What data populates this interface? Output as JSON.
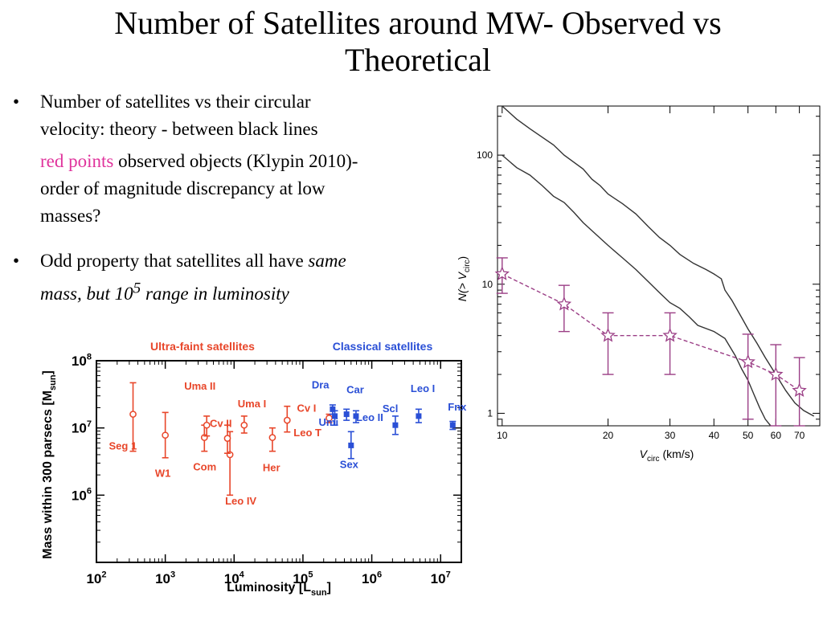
{
  "slide": {
    "title_line1": "Number of Satellites around MW- Observed vs",
    "title_line2": "Theoretical",
    "bullet1_line1": "Number of satellites vs their circular",
    "bullet1_line2": "velocity: theory - between black lines",
    "bullet1b_red": "red points",
    "bullet1b_rest": " observed objects (Klypin 2010)-",
    "bullet1b_line2": "order of magnitude discrepancy at low",
    "bullet1b_line3": "masses?",
    "bullet2_part1": "Odd property that satellites all have ",
    "bullet2_part2": "same",
    "bullet2_line2_part1": "mass, but 10",
    "bullet2_sup": "5",
    "bullet2_line2_part2": " range in luminosity",
    "bullet_glyph": "•"
  },
  "colors": {
    "ultra_faint": "#e8462a",
    "classical": "#2a4fd6",
    "observed": "#9b3f86",
    "theory": "#333333"
  },
  "chart_data": [
    {
      "type": "scatter",
      "title_left": "Ultra-faint satellites",
      "title_right": "Classical satellites",
      "xlabel": "Luminosity [L",
      "xlabel_sub": "sun",
      "xlabel_end": "]",
      "ylabel": "Mass within 300 parsecs [M",
      "ylabel_sub": "sun",
      "ylabel_end": "]",
      "xscale": "log",
      "yscale": "log",
      "xlim": [
        100,
        20000000
      ],
      "ylim": [
        100000,
        100000000
      ],
      "xticks": [
        {
          "v": 100,
          "base": "10",
          "exp": "2"
        },
        {
          "v": 1000,
          "base": "10",
          "exp": "3"
        },
        {
          "v": 10000,
          "base": "10",
          "exp": "4"
        },
        {
          "v": 100000,
          "base": "10",
          "exp": "5"
        },
        {
          "v": 1000000,
          "base": "10",
          "exp": "6"
        },
        {
          "v": 10000000,
          "base": "10",
          "exp": "7"
        }
      ],
      "yticks": [
        {
          "v": 1000000,
          "base": "10",
          "exp": "6"
        },
        {
          "v": 10000000,
          "base": "10",
          "exp": "7"
        },
        {
          "v": 100000000,
          "base": "10",
          "exp": "8"
        }
      ],
      "series": [
        {
          "group": "ultra-faint",
          "points": [
            {
              "name": "Seg 1",
              "x": 340,
              "y": 16000000,
              "lo": 4500000,
              "hi": 47000000
            },
            {
              "name": "W1",
              "x": 1000,
              "y": 7800000,
              "lo": 3600000,
              "hi": 17000000
            },
            {
              "name": "Com",
              "x": 3700,
              "y": 7200000,
              "lo": 4500000,
              "hi": 11000000
            },
            {
              "name": "Uma II",
              "x": 4000,
              "y": 11000000,
              "lo": 7600000,
              "hi": 15000000
            },
            {
              "name": "Leo IV",
              "x": 8700,
              "y": 4000000,
              "lo": 1000000,
              "hi": 8800000
            },
            {
              "name": "Cv II",
              "x": 8000,
              "y": 7000000,
              "lo": 4200000,
              "hi": 11000000
            },
            {
              "name": "Uma I",
              "x": 14000,
              "y": 11000000,
              "lo": 8400000,
              "hi": 15000000
            },
            {
              "name": "Her",
              "x": 36000,
              "y": 7200000,
              "lo": 4500000,
              "hi": 10000000
            },
            {
              "name": "Leo T",
              "x": 59000,
              "y": 13000000,
              "lo": 8700000,
              "hi": 21000000
            },
            {
              "name": "Cv I",
              "x": 240000,
              "y": 14000000,
              "lo": 12000000,
              "hi": 16000000
            }
          ]
        },
        {
          "group": "classical",
          "points": [
            {
              "name": "Dra",
              "x": 270000,
              "y": 19000000,
              "lo": 16000000,
              "hi": 22000000
            },
            {
              "name": "Umi",
              "x": 290000,
              "y": 15000000,
              "lo": 11000000,
              "hi": 18000000
            },
            {
              "name": "Car",
              "x": 430000,
              "y": 16000000,
              "lo": 13000000,
              "hi": 19000000
            },
            {
              "name": "Sex",
              "x": 500000,
              "y": 5500000,
              "lo": 3500000,
              "hi": 8800000
            },
            {
              "name": "Leo II",
              "x": 590000,
              "y": 15000000,
              "lo": 12000000,
              "hi": 18000000
            },
            {
              "name": "Scl",
              "x": 2200000,
              "y": 11000000,
              "lo": 8000000,
              "hi": 15000000
            },
            {
              "name": "Leo I",
              "x": 4800000,
              "y": 15000000,
              "lo": 12000000,
              "hi": 19000000
            },
            {
              "name": "Fnx",
              "x": 15000000,
              "y": 11000000,
              "lo": 9500000,
              "hi": 12500000
            }
          ]
        }
      ]
    },
    {
      "type": "line",
      "xlabel_main": "V",
      "xlabel_sub": "circ",
      "xlabel_unit": " (km/s)",
      "ylabel": "N(> V",
      "ylabel_sub": "circ",
      "ylabel_end": ")",
      "xscale": "log",
      "yscale": "log",
      "xlim": [
        9.7,
        80
      ],
      "ylim": [
        0.8,
        240
      ],
      "xtick_labels": [
        "10",
        "20",
        "30",
        "40",
        "50",
        "60",
        "70"
      ],
      "xtick_values": [
        10,
        20,
        30,
        40,
        50,
        60,
        70
      ],
      "ytick_labels": [
        "1",
        "10",
        "100"
      ],
      "ytick_values": [
        1,
        10,
        100
      ],
      "theory_upper": [
        [
          10,
          240
        ],
        [
          11,
          190
        ],
        [
          12,
          160
        ],
        [
          14,
          120
        ],
        [
          15,
          100
        ],
        [
          17,
          78
        ],
        [
          18,
          65
        ],
        [
          19,
          58
        ],
        [
          20,
          50
        ],
        [
          22,
          42
        ],
        [
          24,
          35
        ],
        [
          26,
          28
        ],
        [
          28,
          23
        ],
        [
          30,
          20
        ],
        [
          32,
          17
        ],
        [
          35,
          14.5
        ],
        [
          38,
          13
        ],
        [
          40,
          12
        ],
        [
          42,
          11
        ],
        [
          43,
          9
        ],
        [
          45,
          7.5
        ],
        [
          48,
          5.5
        ],
        [
          50,
          4.5
        ],
        [
          53,
          3.5
        ],
        [
          56,
          2.7
        ],
        [
          60,
          2.0
        ],
        [
          64,
          1.5
        ],
        [
          68,
          1.2
        ],
        [
          72,
          1.05
        ],
        [
          77,
          0.95
        ]
      ],
      "theory_lower": [
        [
          10,
          100
        ],
        [
          11,
          80
        ],
        [
          12,
          70
        ],
        [
          13,
          58
        ],
        [
          14,
          48
        ],
        [
          15,
          43
        ],
        [
          16,
          36
        ],
        [
          17,
          30
        ],
        [
          18,
          26
        ],
        [
          20,
          20
        ],
        [
          22,
          16
        ],
        [
          24,
          13
        ],
        [
          26,
          10.5
        ],
        [
          28,
          8.6
        ],
        [
          30,
          7.2
        ],
        [
          32,
          6.5
        ],
        [
          34,
          5.6
        ],
        [
          36,
          4.8
        ],
        [
          40,
          4.3
        ],
        [
          43,
          3.8
        ],
        [
          46,
          2.8
        ],
        [
          48,
          2.2
        ],
        [
          50,
          1.8
        ],
        [
          52,
          1.4
        ],
        [
          54,
          1.1
        ],
        [
          56,
          0.9
        ],
        [
          58,
          0.8
        ]
      ],
      "series": [
        {
          "name": "observed",
          "points": [
            {
              "x": 10,
              "y": 12,
              "lo": 8.5,
              "hi": 16
            },
            {
              "x": 15,
              "y": 7,
              "lo": 4.3,
              "hi": 9.8
            },
            {
              "x": 20,
              "y": 4,
              "lo": 2,
              "hi": 6
            },
            {
              "x": 30,
              "y": 4,
              "lo": 2,
              "hi": 6
            },
            {
              "x": 50,
              "y": 2.5,
              "lo": 0.9,
              "hi": 4.1
            },
            {
              "x": 60,
              "y": 2,
              "lo": 0.8,
              "hi": 3.4
            },
            {
              "x": 70,
              "y": 1.5,
              "lo": 0.8,
              "hi": 2.7
            }
          ]
        }
      ]
    }
  ]
}
